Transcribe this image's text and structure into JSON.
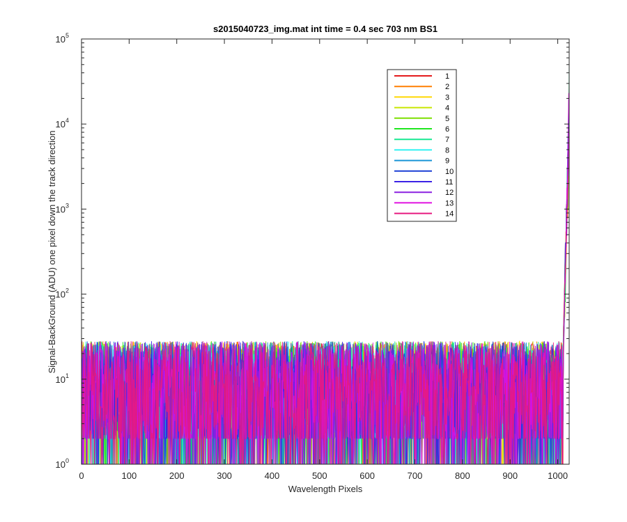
{
  "chart_data": {
    "type": "line",
    "title": "s2015040723_img.mat int time = 0.4 sec  703 nm BS1",
    "xlabel": "Wavelength Pixels",
    "ylabel": "Signal-BackGround (ADU) one pixel down the track direction",
    "xlim": [
      0,
      1024
    ],
    "ylim": [
      1,
      100000
    ],
    "yscale": "log",
    "grid": false,
    "legend_position": "top-right",
    "x_ticks": [
      "0",
      "100",
      "200",
      "300",
      "400",
      "500",
      "600",
      "700",
      "800",
      "900",
      "1000"
    ],
    "y_ticks": [
      {
        "base": "10",
        "exp": "0"
      },
      {
        "base": "10",
        "exp": "1"
      },
      {
        "base": "10",
        "exp": "2"
      },
      {
        "base": "10",
        "exp": "3"
      },
      {
        "base": "10",
        "exp": "4"
      },
      {
        "base": "10",
        "exp": "5"
      }
    ],
    "noise_floor_range": [
      1,
      30
    ],
    "peak": {
      "x_start": 1012,
      "x_end": 1024,
      "max_value": 35000
    },
    "series": [
      {
        "name": "1",
        "color": "#e41a1c"
      },
      {
        "name": "2",
        "color": "#ff7f00"
      },
      {
        "name": "3",
        "color": "#ffd700"
      },
      {
        "name": "4",
        "color": "#c8e600"
      },
      {
        "name": "5",
        "color": "#7ddf00"
      },
      {
        "name": "6",
        "color": "#1ee61e"
      },
      {
        "name": "7",
        "color": "#17e891"
      },
      {
        "name": "8",
        "color": "#2ef2f2"
      },
      {
        "name": "9",
        "color": "#1994d6"
      },
      {
        "name": "10",
        "color": "#1a3fd6"
      },
      {
        "name": "11",
        "color": "#3b22e6"
      },
      {
        "name": "12",
        "color": "#8a1fe0"
      },
      {
        "name": "13",
        "color": "#e010e0"
      },
      {
        "name": "14",
        "color": "#e6197f"
      }
    ]
  }
}
